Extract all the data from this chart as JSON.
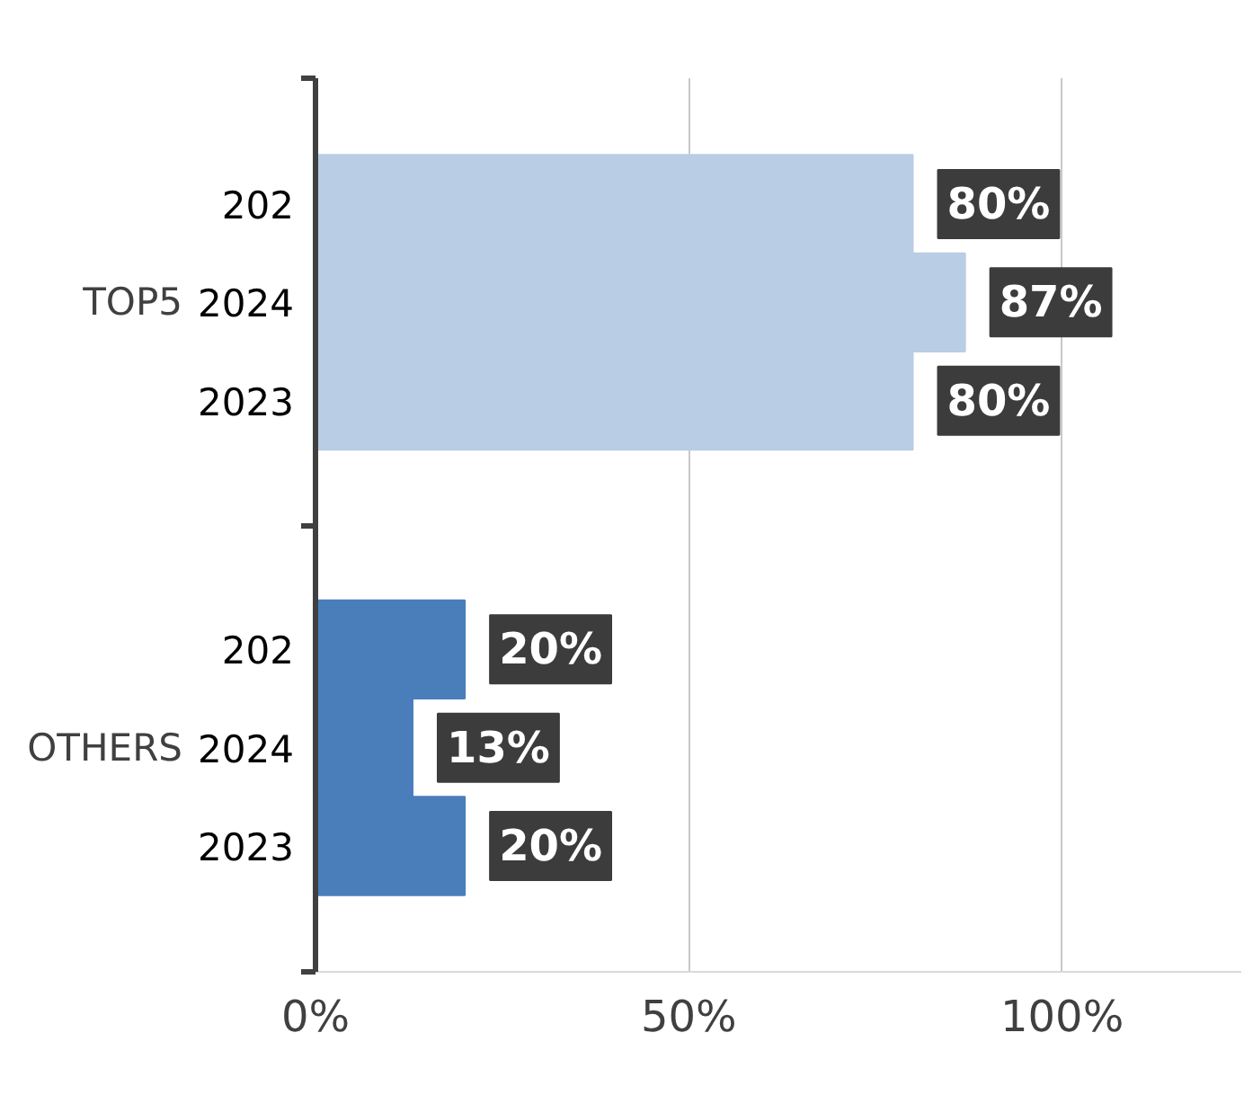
{
  "chart_data": {
    "type": "bar",
    "orientation": "horizontal",
    "categories": [
      "TOP5",
      "OTHERS"
    ],
    "series": [
      {
        "name": "202",
        "colors": [
          "#b9cde5",
          "#4a7ebb"
        ],
        "values": [
          80,
          20
        ],
        "value_labels": [
          "80%",
          "20%"
        ]
      },
      {
        "name": "2024",
        "colors": [
          "#b9cde5",
          "#4a7ebb"
        ],
        "values": [
          87,
          13
        ],
        "value_labels": [
          "87%",
          "13%"
        ]
      },
      {
        "name": "2023",
        "colors": [
          "#b9cde5",
          "#4a7ebb"
        ],
        "values": [
          80,
          20
        ],
        "value_labels": [
          "80%",
          "20%"
        ]
      }
    ],
    "xlim": [
      0,
      124
    ],
    "xticks": [
      {
        "value": 0,
        "label": "0%"
      },
      {
        "value": 50,
        "label": "50%"
      },
      {
        "value": 100,
        "label": "100%"
      }
    ],
    "grid": "x",
    "legend": false
  }
}
